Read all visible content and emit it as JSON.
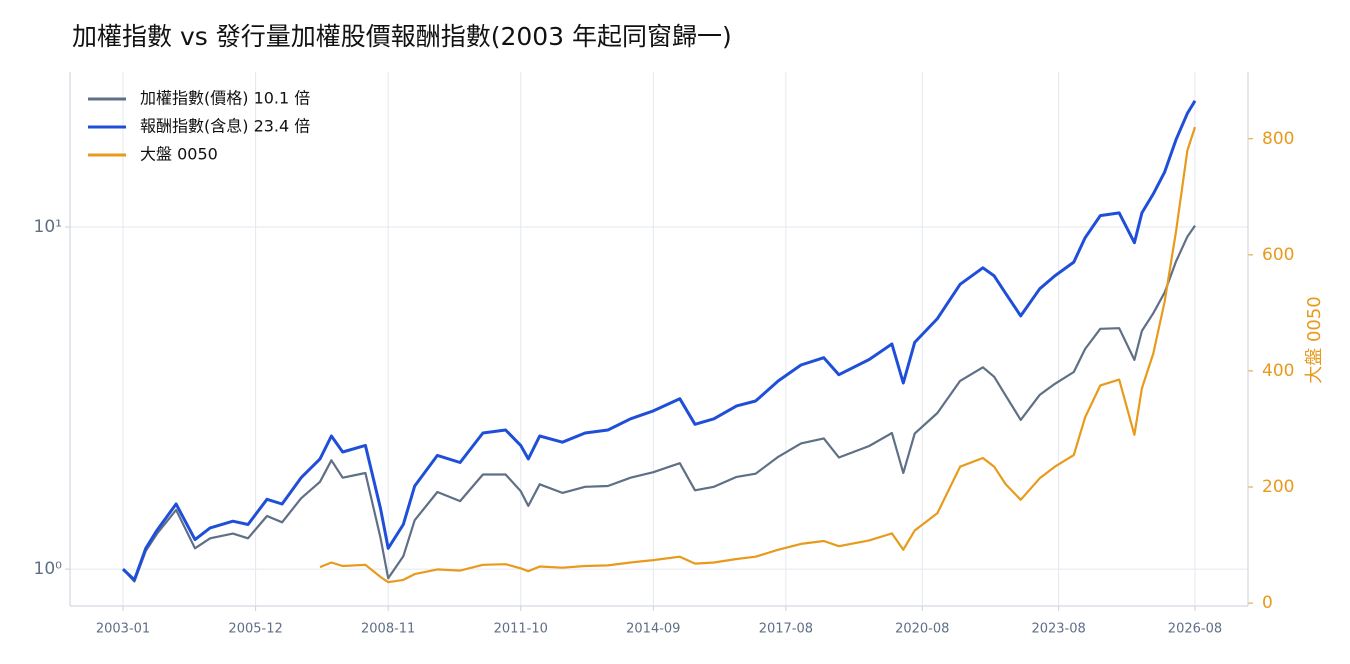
{
  "chart_data": {
    "type": "line",
    "title": "加權指數 vs 發行量加權股價報酬指數(2003 年起同窗歸一)",
    "y2label": "大盤 0050",
    "log_y": true,
    "grid": true,
    "legend": "upper left",
    "x": [
      "2003-01",
      "2003-04",
      "2003-07",
      "2003-10",
      "2004-03",
      "2004-08",
      "2004-12",
      "2005-06",
      "2005-10",
      "2006-03",
      "2006-07",
      "2006-12",
      "2007-05",
      "2007-08",
      "2007-11",
      "2008-05",
      "2008-09",
      "2008-11",
      "2009-03",
      "2009-06",
      "2009-12",
      "2010-06",
      "2010-12",
      "2011-06",
      "2011-10",
      "2011-12",
      "2012-03",
      "2012-09",
      "2013-03",
      "2013-09",
      "2014-03",
      "2014-09",
      "2015-04",
      "2015-08",
      "2016-01",
      "2016-07",
      "2016-12",
      "2017-06",
      "2017-12",
      "2018-06",
      "2018-10",
      "2019-06",
      "2019-12",
      "2020-03",
      "2020-06",
      "2020-12",
      "2021-06",
      "2021-12",
      "2022-03",
      "2022-06",
      "2022-10",
      "2023-03",
      "2023-07",
      "2023-12",
      "2024-03",
      "2024-07",
      "2024-12",
      "2025-04",
      "2025-06",
      "2025-09",
      "2025-12",
      "2026-03",
      "2026-06",
      "2026-08"
    ],
    "xlim": [
      "2001-11",
      "2027-10"
    ],
    "xticks": [
      "2003-01",
      "2005-12",
      "2008-11",
      "2011-10",
      "2014-09",
      "2017-08",
      "2020-08",
      "2023-08",
      "2026-08"
    ],
    "ylim": [
      0.78,
      28.4
    ],
    "yticks": [
      {
        "value": 1,
        "label": "10⁰"
      },
      {
        "value": 10,
        "label": "10¹"
      }
    ],
    "y2lim": [
      -5,
      915
    ],
    "y2ticks": [
      0,
      200,
      400,
      600,
      800
    ],
    "series": [
      {
        "name": "加權指數(價格) 10.1 倍",
        "color": "#5f6f86",
        "values": [
          1.0,
          0.92,
          1.13,
          1.27,
          1.49,
          1.15,
          1.23,
          1.27,
          1.23,
          1.43,
          1.37,
          1.61,
          1.8,
          2.08,
          1.85,
          1.91,
          1.23,
          0.94,
          1.09,
          1.39,
          1.68,
          1.58,
          1.89,
          1.89,
          1.69,
          1.53,
          1.77,
          1.67,
          1.74,
          1.75,
          1.85,
          1.92,
          2.04,
          1.7,
          1.74,
          1.86,
          1.9,
          2.13,
          2.33,
          2.41,
          2.12,
          2.29,
          2.5,
          1.91,
          2.49,
          2.86,
          3.55,
          3.89,
          3.65,
          3.22,
          2.73,
          3.23,
          3.48,
          3.77,
          4.4,
          5.04,
          5.06,
          4.09,
          4.97,
          5.6,
          6.44,
          7.93,
          9.38,
          10.1
        ]
      },
      {
        "name": "報酬指數(含息) 23.4 倍",
        "color": "#1f4fd8",
        "values": [
          1.0,
          0.93,
          1.15,
          1.3,
          1.55,
          1.22,
          1.32,
          1.38,
          1.35,
          1.6,
          1.55,
          1.85,
          2.1,
          2.45,
          2.2,
          2.3,
          1.5,
          1.15,
          1.35,
          1.75,
          2.15,
          2.05,
          2.5,
          2.55,
          2.3,
          2.1,
          2.45,
          2.35,
          2.5,
          2.55,
          2.75,
          2.9,
          3.15,
          2.65,
          2.75,
          3.0,
          3.1,
          3.55,
          3.95,
          4.15,
          3.7,
          4.1,
          4.55,
          3.5,
          4.6,
          5.4,
          6.8,
          7.6,
          7.2,
          6.4,
          5.5,
          6.6,
          7.2,
          7.9,
          9.3,
          10.8,
          11.0,
          9.0,
          11.0,
          12.5,
          14.5,
          18.0,
          21.5,
          23.4
        ]
      },
      {
        "name": "大盤 0050",
        "color": "#e89a1c",
        "axis": "y2",
        "values": [
          null,
          null,
          null,
          null,
          null,
          null,
          null,
          null,
          null,
          null,
          null,
          null,
          62,
          70,
          64,
          66,
          45,
          36,
          40,
          50,
          58,
          56,
          66,
          67,
          60,
          55,
          63,
          61,
          64,
          65,
          70,
          74,
          80,
          68,
          70,
          76,
          80,
          92,
          102,
          107,
          98,
          108,
          120,
          92,
          125,
          155,
          235,
          250,
          235,
          205,
          178,
          215,
          235,
          255,
          320,
          375,
          385,
          290,
          370,
          430,
          520,
          640,
          780,
          820
        ]
      }
    ]
  }
}
